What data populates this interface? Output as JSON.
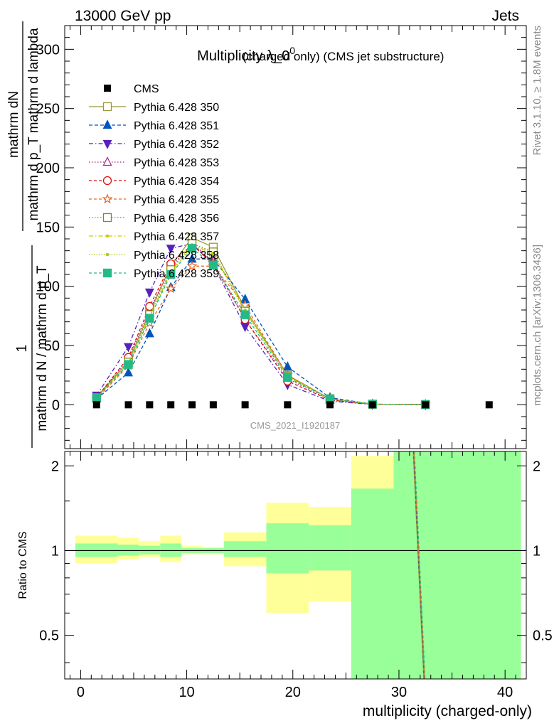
{
  "header": {
    "left": "13000 GeV pp",
    "right": "Jets"
  },
  "side_labels": {
    "rivet": "Rivet 3.1.10, ≥ 1.8M events",
    "mcplots": "mcplots.cern.ch [arXiv:1306.3436]"
  },
  "colors": {
    "data": "#000000",
    "band_inner": "#99ff99",
    "band_outer": "#ffff99"
  },
  "chart_data": [
    {
      "type": "line",
      "title": "Multiplicity λ_0",
      "title_sup": "0",
      "subtitle": "(charged only) (CMS jet substructure)",
      "watermark": "CMS_2021_I1920187",
      "ylabel_num": "mathrm dN",
      "ylabel_den": "mathrm d p_T mathrm d lambda",
      "ylabel_prefix_num": "1",
      "ylabel_prefix_den": "mathrm d N / mathrm d p_T",
      "xlim": [
        -1.5,
        42
      ],
      "ylim": [
        -37,
        320
      ],
      "yticks": [
        0,
        50,
        100,
        150,
        200,
        250,
        300
      ],
      "legend_position": "top-left",
      "data": {
        "name": "CMS",
        "x": [
          1.5,
          4.5,
          6.5,
          8.5,
          10.5,
          12.5,
          15.5,
          19.5,
          23.5,
          27.5,
          32.5,
          38.5
        ],
        "y": [
          0,
          0,
          0,
          0,
          0,
          0,
          0,
          0,
          0,
          0,
          0,
          0
        ]
      },
      "x": [
        1.5,
        4.5,
        6.5,
        8.5,
        10.5,
        12.5,
        15.5,
        19.5,
        23.5,
        27.5,
        32.5
      ],
      "series": [
        {
          "name": "Pythia 6.428 350",
          "color": "#999933",
          "dash": "",
          "marker": "square-open",
          "y": [
            6,
            37,
            78,
            117,
            141,
            133,
            81,
            25,
            5,
            0.5,
            0.2
          ]
        },
        {
          "name": "Pythia 6.428 351",
          "color": "#0055bb",
          "dash": "5,3",
          "marker": "triangle-up-filled",
          "y": [
            5,
            27,
            60,
            99,
            123,
            123,
            89,
            32,
            6,
            0.5,
            0.2
          ]
        },
        {
          "name": "Pythia 6.428 352",
          "color": "#5522bb",
          "dash": "6,3,1.5,3",
          "marker": "triangle-down-filled",
          "y": [
            8,
            49,
            95,
            132,
            136,
            118,
            66,
            17,
            3,
            0.3,
            0.1
          ]
        },
        {
          "name": "Pythia 6.428 353",
          "color": "#aa2277",
          "dash": "1.5,2.5",
          "marker": "triangle-up-open",
          "y": [
            6,
            39,
            80,
            116,
            136,
            121,
            72,
            22,
            4,
            0.4,
            0.1
          ]
        },
        {
          "name": "Pythia 6.428 354",
          "color": "#dd1111",
          "dash": "4,3",
          "marker": "circle-open",
          "y": [
            6,
            40,
            83,
            119,
            135,
            119,
            72,
            20,
            4,
            0.4,
            0.1
          ]
        },
        {
          "name": "Pythia 6.428 355",
          "color": "#ee6622",
          "dash": "4,3",
          "marker": "star-open",
          "y": [
            5,
            33,
            69,
            98,
            117,
            117,
            84,
            25,
            5,
            0.5,
            0.2
          ]
        },
        {
          "name": "Pythia 6.428 356",
          "color": "#888811",
          "dash": "1.5,2.5",
          "marker": "square-open",
          "y": [
            6,
            36,
            76,
            114,
            136,
            129,
            79,
            24,
            5,
            0.5,
            0.2
          ]
        },
        {
          "name": "Pythia 6.428 357",
          "color": "#cccc00",
          "dash": "6,3,1.5,3",
          "marker": "dot",
          "y": [
            6,
            35,
            75,
            112,
            135,
            128,
            80,
            24,
            5,
            0.5,
            0.2
          ]
        },
        {
          "name": "Pythia 6.428 358",
          "color": "#aacc11",
          "dash": "1.5,2",
          "marker": "dot",
          "y": [
            6,
            35,
            74,
            111,
            134,
            127,
            79,
            24,
            5,
            0.5,
            0.2
          ]
        },
        {
          "name": "Pythia 6.428 359",
          "color": "#22bb88",
          "dash": "4,3",
          "marker": "square-filled",
          "y": [
            6,
            34,
            73,
            110,
            132,
            118,
            76,
            23,
            5,
            0.5,
            0.2
          ]
        }
      ]
    },
    {
      "type": "area",
      "ylabel": "Ratio to CMS",
      "xlabel": "multiplicity (charged-only)",
      "xlim": [
        -1.5,
        42
      ],
      "ylim": [
        0.35,
        2.25
      ],
      "xticks": [
        0,
        10,
        20,
        30,
        40
      ],
      "yticks": [
        0.5,
        1,
        2
      ],
      "bands": [
        {
          "x0": -0.5,
          "x1": 3.5,
          "inner": [
            0.95,
            1.06
          ],
          "outer": [
            0.9,
            1.13
          ]
        },
        {
          "x0": 3.5,
          "x1": 5.5,
          "inner": [
            0.96,
            1.05
          ],
          "outer": [
            0.93,
            1.11
          ]
        },
        {
          "x0": 5.5,
          "x1": 7.5,
          "inner": [
            0.97,
            1.04
          ],
          "outer": [
            0.95,
            1.08
          ]
        },
        {
          "x0": 7.5,
          "x1": 9.5,
          "inner": [
            0.95,
            1.06
          ],
          "outer": [
            0.91,
            1.13
          ]
        },
        {
          "x0": 9.5,
          "x1": 11.5,
          "inner": [
            0.98,
            1.02
          ],
          "outer": [
            0.97,
            1.04
          ]
        },
        {
          "x0": 11.5,
          "x1": 13.5,
          "inner": [
            0.98,
            1.02
          ],
          "outer": [
            0.97,
            1.03
          ]
        },
        {
          "x0": 13.5,
          "x1": 17.5,
          "inner": [
            0.95,
            1.08
          ],
          "outer": [
            0.88,
            1.16
          ]
        },
        {
          "x0": 17.5,
          "x1": 21.5,
          "inner": [
            0.83,
            1.25
          ],
          "outer": [
            0.6,
            1.48
          ]
        },
        {
          "x0": 21.5,
          "x1": 25.5,
          "inner": [
            0.85,
            1.23
          ],
          "outer": [
            0.66,
            1.43
          ]
        },
        {
          "x0": 25.5,
          "x1": 29.5,
          "inner": [
            0.35,
            1.66
          ],
          "outer": [
            0.35,
            2.17
          ]
        },
        {
          "x0": 29.5,
          "x1": 41.5,
          "inner": [
            0.35,
            2.25
          ],
          "outer": [
            0.35,
            2.25
          ]
        }
      ],
      "ratio_lines": {
        "colors": [
          "#999933",
          "#0055bb",
          "#ee6622",
          "#22bb88"
        ],
        "x_top": 31.4,
        "x_bottom": 32.4
      }
    }
  ]
}
